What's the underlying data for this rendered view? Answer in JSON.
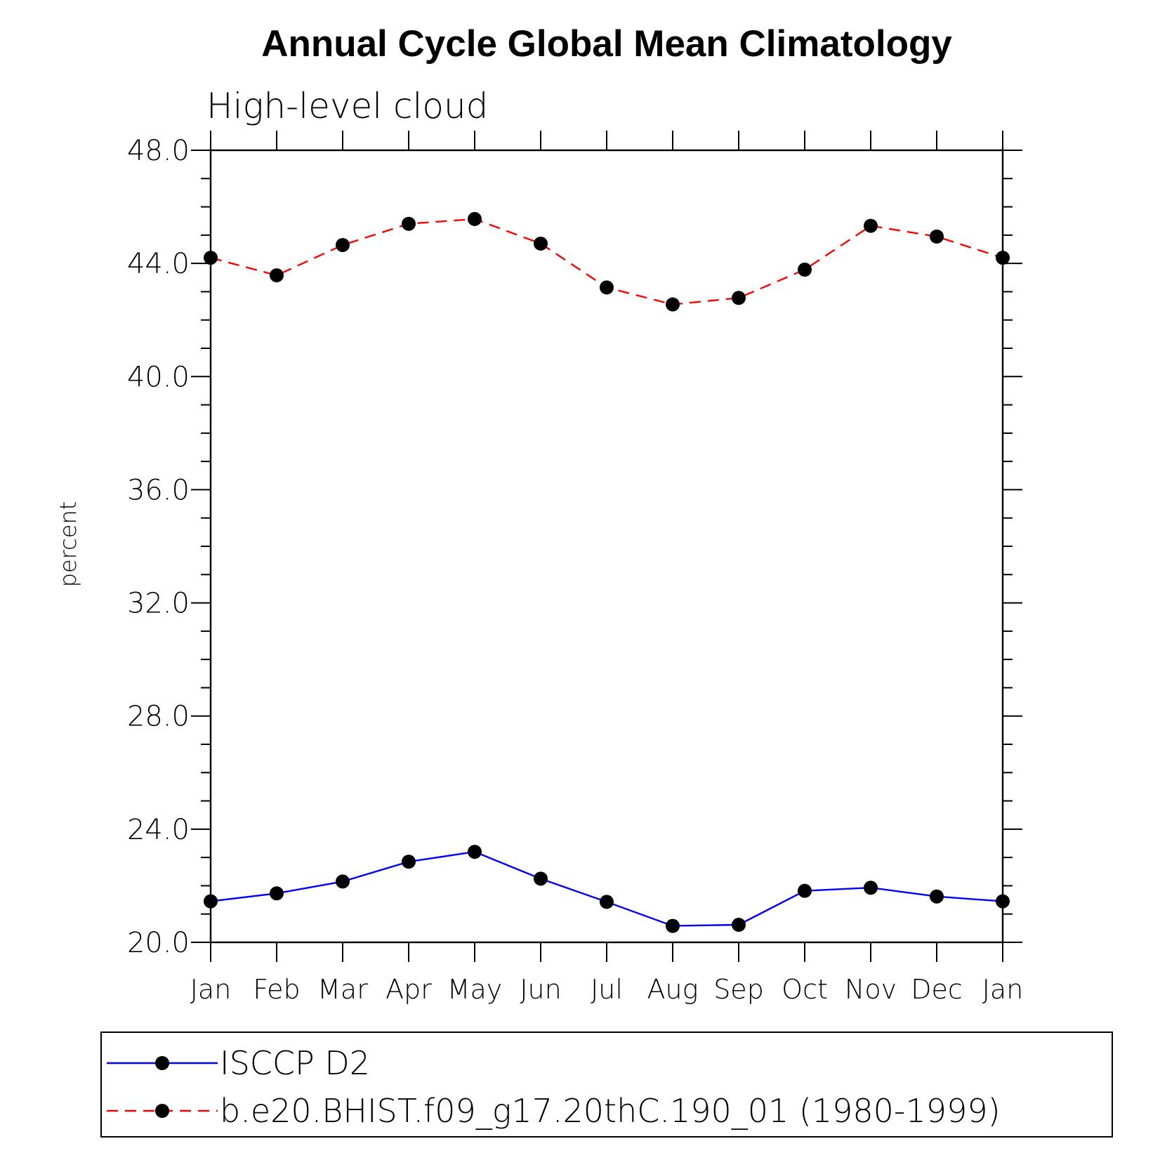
{
  "chart_data": {
    "type": "line",
    "title": "Annual Cycle Global Mean Climatology",
    "subtitle": "High-level cloud",
    "xlabel": "",
    "ylabel": "percent",
    "categories": [
      "Jan",
      "Feb",
      "Mar",
      "Apr",
      "May",
      "Jun",
      "Jul",
      "Aug",
      "Sep",
      "Oct",
      "Nov",
      "Dec",
      "Jan"
    ],
    "ylim": [
      20.0,
      48.0
    ],
    "yticks": [
      "20.0",
      "24.0",
      "28.0",
      "32.0",
      "36.0",
      "40.0",
      "44.0",
      "48.0"
    ],
    "grid": false,
    "legend_position": "bottom",
    "series": [
      {
        "name": "ISCCP D2",
        "color": "#0000ff",
        "dash": "solid",
        "marker": "filled-circle",
        "values": [
          21.45,
          21.73,
          22.15,
          22.85,
          23.2,
          22.25,
          21.43,
          20.58,
          20.62,
          21.82,
          21.93,
          21.62,
          21.45
        ]
      },
      {
        "name": "b.e20.BHIST.f09_g17.20thC.190_01 (1980-1999)",
        "color": "#ff0000",
        "dash": "dashed",
        "marker": "filled-circle",
        "values": [
          44.2,
          43.58,
          44.65,
          45.4,
          45.57,
          44.7,
          43.15,
          42.55,
          42.78,
          43.78,
          45.33,
          44.95,
          44.2
        ]
      }
    ]
  }
}
